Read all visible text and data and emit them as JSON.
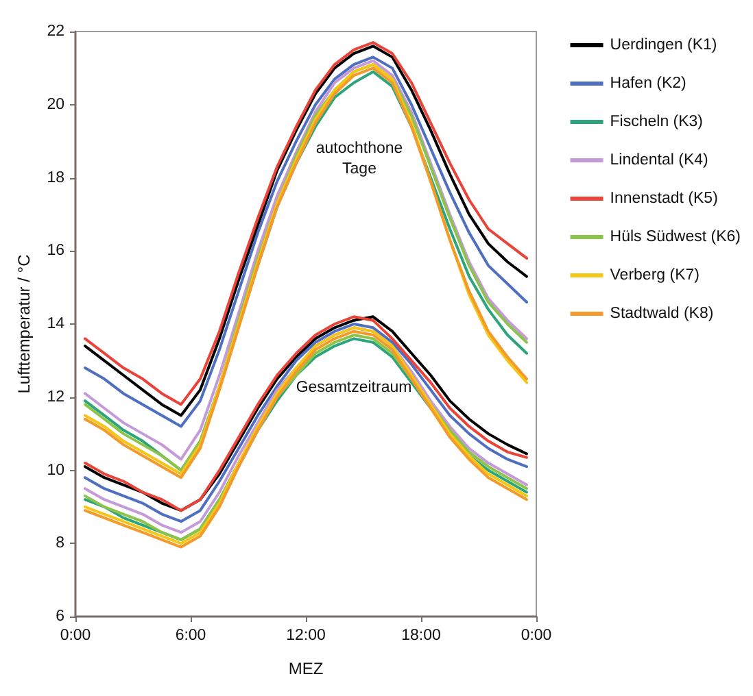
{
  "chart_data": {
    "type": "line",
    "xlabel": "MEZ",
    "ylabel": "Lufttemperatur / °C",
    "x": [
      0.5,
      1.5,
      2.5,
      3.5,
      4.5,
      5.5,
      6.5,
      7.5,
      8.5,
      9.5,
      10.5,
      11.5,
      12.5,
      13.5,
      14.5,
      15.5,
      16.5,
      17.5,
      18.5,
      19.5,
      20.5,
      21.5,
      22.5,
      23.5
    ],
    "xlim": [
      0,
      24
    ],
    "xticks": [
      {
        "value": 0,
        "label": "0:00"
      },
      {
        "value": 6,
        "label": "6:00"
      },
      {
        "value": 12,
        "label": "12:00"
      },
      {
        "value": 18,
        "label": "18:00"
      },
      {
        "value": 24,
        "label": "0:00"
      }
    ],
    "ylim": [
      6,
      22
    ],
    "yticks": [
      6,
      8,
      10,
      12,
      14,
      16,
      18,
      20,
      22
    ],
    "grid": false,
    "legend": "right",
    "marker": "none",
    "line_style": "solid",
    "annotations": [
      "autochthone Tage",
      "Gesamtzeitraum"
    ],
    "series": [
      {
        "name": "Uerdingen (K1)",
        "color": "#000000",
        "values": [
          13.4,
          13.0,
          12.6,
          12.2,
          11.8,
          11.5,
          12.2,
          13.6,
          15.2,
          16.7,
          18.2,
          19.3,
          20.3,
          21.0,
          21.4,
          21.6,
          21.3,
          20.4,
          19.3,
          18.1,
          17.0,
          16.2,
          15.7,
          15.3
        ]
      },
      {
        "name": "Hafen (K2)",
        "color": "#4f6fc0",
        "values": [
          12.8,
          12.5,
          12.1,
          11.8,
          11.5,
          11.2,
          11.9,
          13.3,
          14.9,
          16.5,
          17.9,
          19.0,
          20.0,
          20.7,
          21.1,
          21.3,
          21.0,
          20.0,
          18.8,
          17.6,
          16.5,
          15.6,
          15.1,
          14.6
        ]
      },
      {
        "name": "Fischeln (K3)",
        "color": "#2ca57a",
        "values": [
          11.9,
          11.5,
          11.1,
          10.8,
          10.4,
          10.0,
          10.8,
          12.3,
          14.0,
          15.6,
          17.2,
          18.4,
          19.4,
          20.2,
          20.6,
          20.9,
          20.5,
          19.4,
          18.0,
          16.6,
          15.3,
          14.4,
          13.7,
          13.2
        ]
      },
      {
        "name": "Lindental (K4)",
        "color": "#c49ad8",
        "values": [
          12.1,
          11.7,
          11.3,
          11.0,
          10.7,
          10.3,
          11.1,
          12.6,
          14.3,
          16.0,
          17.5,
          18.7,
          19.8,
          20.6,
          21.0,
          21.2,
          20.8,
          19.8,
          18.4,
          17.0,
          15.7,
          14.7,
          14.1,
          13.6
        ]
      },
      {
        "name": "Innenstadt (K5)",
        "color": "#e8443a",
        "values": [
          13.6,
          13.2,
          12.8,
          12.5,
          12.1,
          11.8,
          12.5,
          13.8,
          15.4,
          16.9,
          18.3,
          19.4,
          20.4,
          21.1,
          21.5,
          21.7,
          21.4,
          20.6,
          19.5,
          18.4,
          17.4,
          16.6,
          16.2,
          15.8
        ]
      },
      {
        "name": "Hüls Südwest (K6)",
        "color": "#8cc34a",
        "values": [
          11.8,
          11.4,
          11.0,
          10.7,
          10.4,
          10.0,
          10.8,
          12.3,
          14.1,
          15.8,
          17.3,
          18.6,
          19.7,
          20.4,
          20.9,
          21.1,
          20.7,
          19.7,
          18.3,
          16.9,
          15.6,
          14.6,
          14.0,
          13.5
        ]
      },
      {
        "name": "Verberg (K7)",
        "color": "#f5c518",
        "values": [
          11.5,
          11.2,
          10.8,
          10.5,
          10.2,
          9.9,
          10.7,
          12.3,
          14.0,
          15.7,
          17.3,
          18.5,
          19.6,
          20.4,
          20.9,
          21.1,
          20.7,
          19.5,
          17.9,
          16.3,
          14.8,
          13.7,
          13.0,
          12.4
        ]
      },
      {
        "name": "Stadtwald (K8)",
        "color": "#f39a2a",
        "values": [
          11.4,
          11.1,
          10.7,
          10.4,
          10.1,
          9.8,
          10.6,
          12.2,
          13.9,
          15.6,
          17.2,
          18.4,
          19.5,
          20.3,
          20.8,
          21.0,
          20.6,
          19.4,
          17.9,
          16.3,
          14.9,
          13.8,
          13.1,
          12.5
        ]
      },
      {
        "color": "#000000",
        "values": [
          10.1,
          9.8,
          9.6,
          9.4,
          9.1,
          8.9,
          9.2,
          9.9,
          10.8,
          11.7,
          12.5,
          13.1,
          13.6,
          13.9,
          14.1,
          14.2,
          13.8,
          13.2,
          12.6,
          11.9,
          11.4,
          11.0,
          10.7,
          10.45
        ]
      },
      {
        "color": "#4f6fc0",
        "values": [
          9.8,
          9.5,
          9.3,
          9.1,
          8.8,
          8.6,
          8.9,
          9.7,
          10.6,
          11.5,
          12.3,
          13.0,
          13.5,
          13.8,
          14.0,
          13.9,
          13.5,
          12.9,
          12.2,
          11.5,
          11.0,
          10.6,
          10.3,
          10.1
        ]
      },
      {
        "color": "#2ca57a",
        "values": [
          9.2,
          9.0,
          8.7,
          8.5,
          8.3,
          8.1,
          8.4,
          9.2,
          10.1,
          11.1,
          11.9,
          12.6,
          13.1,
          13.4,
          13.6,
          13.5,
          13.1,
          12.4,
          11.7,
          11.0,
          10.4,
          10.0,
          9.7,
          9.4
        ]
      },
      {
        "color": "#c49ad8",
        "values": [
          9.5,
          9.2,
          9.0,
          8.8,
          8.5,
          8.3,
          8.6,
          9.4,
          10.4,
          11.3,
          12.2,
          12.8,
          13.4,
          13.7,
          13.9,
          13.8,
          13.4,
          12.7,
          11.9,
          11.2,
          10.6,
          10.2,
          9.9,
          9.6
        ]
      },
      {
        "color": "#e8443a",
        "values": [
          10.2,
          9.9,
          9.7,
          9.4,
          9.2,
          8.9,
          9.2,
          10.0,
          10.9,
          11.8,
          12.6,
          13.2,
          13.7,
          14.0,
          14.2,
          14.1,
          13.6,
          13.0,
          12.4,
          11.7,
          11.2,
          10.8,
          10.5,
          10.35
        ]
      },
      {
        "color": "#8cc34a",
        "values": [
          9.3,
          9.0,
          8.8,
          8.6,
          8.3,
          8.1,
          8.4,
          9.2,
          10.2,
          11.1,
          12.0,
          12.6,
          13.2,
          13.5,
          13.7,
          13.6,
          13.2,
          12.5,
          11.8,
          11.1,
          10.5,
          10.1,
          9.8,
          9.5
        ]
      },
      {
        "color": "#f5c518",
        "values": [
          9.0,
          8.8,
          8.6,
          8.4,
          8.2,
          8.0,
          8.3,
          9.1,
          10.2,
          11.2,
          12.1,
          12.8,
          13.4,
          13.7,
          13.9,
          13.8,
          13.4,
          12.6,
          11.8,
          11.0,
          10.4,
          9.9,
          9.6,
          9.3
        ]
      },
      {
        "color": "#f39a2a",
        "values": [
          8.9,
          8.7,
          8.5,
          8.3,
          8.1,
          7.9,
          8.2,
          9.0,
          10.1,
          11.1,
          12.0,
          12.7,
          13.3,
          13.6,
          13.8,
          13.7,
          13.3,
          12.5,
          11.7,
          10.9,
          10.3,
          9.8,
          9.5,
          9.2
        ]
      }
    ]
  }
}
